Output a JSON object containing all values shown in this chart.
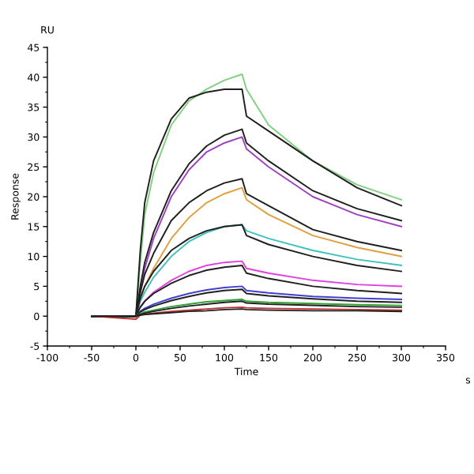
{
  "chart_data": {
    "type": "line",
    "xlabel": "Time",
    "ylabel": "Response",
    "annotations": [
      "RU",
      "s"
    ],
    "x": [
      -50,
      0,
      5,
      10,
      20,
      40,
      60,
      80,
      100,
      120,
      125,
      150,
      200,
      250,
      300
    ],
    "series": [
      {
        "color": "#80d080",
        "values": [
          0,
          0,
          9,
          17,
          24,
          32,
          36,
          38,
          39.5,
          40.5,
          38,
          32,
          26,
          22,
          19.5
        ]
      },
      {
        "color": "#202020",
        "values": [
          0,
          0,
          11,
          19,
          26,
          33,
          36.5,
          37.5,
          38,
          38,
          33.5,
          31,
          26,
          21.5,
          18.5
        ]
      },
      {
        "color": "#a040c0",
        "values": [
          null,
          null,
          4,
          8,
          13,
          20,
          24.5,
          27.5,
          29,
          30,
          28,
          25,
          20,
          17,
          15
        ]
      },
      {
        "color": "#202020",
        "values": [
          0,
          0,
          5,
          9,
          14,
          21,
          25.5,
          28.5,
          30.3,
          31.3,
          29,
          26,
          21,
          18,
          16
        ]
      },
      {
        "color": "#e0a040",
        "values": [
          null,
          null,
          3,
          5,
          8,
          13,
          16.5,
          19,
          20.5,
          21.5,
          19.5,
          17,
          13.5,
          11.5,
          10
        ]
      },
      {
        "color": "#202020",
        "values": [
          0,
          0,
          4,
          7,
          10.5,
          16,
          19,
          21,
          22.3,
          23,
          20.5,
          18.5,
          14.5,
          12.5,
          11
        ]
      },
      {
        "color": "#40c0c0",
        "values": [
          0,
          0,
          2.5,
          4,
          6.5,
          10,
          12.5,
          14,
          15,
          15.3,
          14.3,
          13,
          11,
          9.5,
          8.5
        ]
      },
      {
        "color": "#202020",
        "values": [
          0,
          0,
          3,
          5,
          7.5,
          11,
          13,
          14.3,
          15,
          15.3,
          13.5,
          12,
          10,
          8.5,
          7.5
        ]
      },
      {
        "color": "#e040e0",
        "values": [
          null,
          null,
          1.5,
          2.5,
          4,
          6,
          7.5,
          8.5,
          9,
          9.2,
          8,
          7.2,
          6,
          5.3,
          5
        ]
      },
      {
        "color": "#202020",
        "values": [
          0,
          0,
          1.5,
          2.5,
          3.8,
          5.5,
          6.8,
          7.7,
          8.2,
          8.5,
          7.2,
          6.3,
          5,
          4.3,
          3.8
        ]
      },
      {
        "color": "#4040d0",
        "values": [
          0,
          0,
          0.8,
          1.3,
          2,
          3,
          3.8,
          4.4,
          4.8,
          5,
          4.3,
          3.9,
          3.3,
          3,
          2.8
        ]
      },
      {
        "color": "#202020",
        "values": [
          0,
          0,
          0.7,
          1.1,
          1.7,
          2.6,
          3.3,
          3.9,
          4.3,
          4.5,
          3.8,
          3.4,
          2.9,
          2.5,
          2.3
        ]
      },
      {
        "color": "#30a030",
        "values": [
          0,
          0,
          0.4,
          0.7,
          1,
          1.6,
          2,
          2.4,
          2.6,
          2.8,
          2.5,
          2.3,
          2.1,
          1.9,
          1.8
        ]
      },
      {
        "color": "#202020",
        "values": [
          0,
          0,
          0.3,
          0.5,
          0.8,
          1.3,
          1.7,
          2,
          2.3,
          2.5,
          2.2,
          2,
          1.8,
          1.6,
          1.5
        ]
      },
      {
        "color": "#c03030",
        "values": [
          0,
          -0.5,
          0.2,
          0.3,
          0.5,
          0.8,
          1,
          1.2,
          1.4,
          1.5,
          1.4,
          1.3,
          1.2,
          1.1,
          1
        ]
      },
      {
        "color": "#202020",
        "values": [
          0,
          0,
          0.2,
          0.3,
          0.4,
          0.6,
          0.8,
          0.9,
          1.1,
          1.2,
          1.1,
          1,
          0.9,
          0.9,
          0.8
        ]
      }
    ],
    "xlim": [
      -100,
      350
    ],
    "xticks": [
      -100,
      -50,
      0,
      50,
      100,
      150,
      200,
      250,
      300,
      350
    ],
    "ylim": [
      -5,
      45
    ],
    "yticks": [
      -5,
      0,
      5,
      10,
      15,
      20,
      25,
      30,
      35,
      40,
      45
    ],
    "grid": false,
    "legend": false
  }
}
